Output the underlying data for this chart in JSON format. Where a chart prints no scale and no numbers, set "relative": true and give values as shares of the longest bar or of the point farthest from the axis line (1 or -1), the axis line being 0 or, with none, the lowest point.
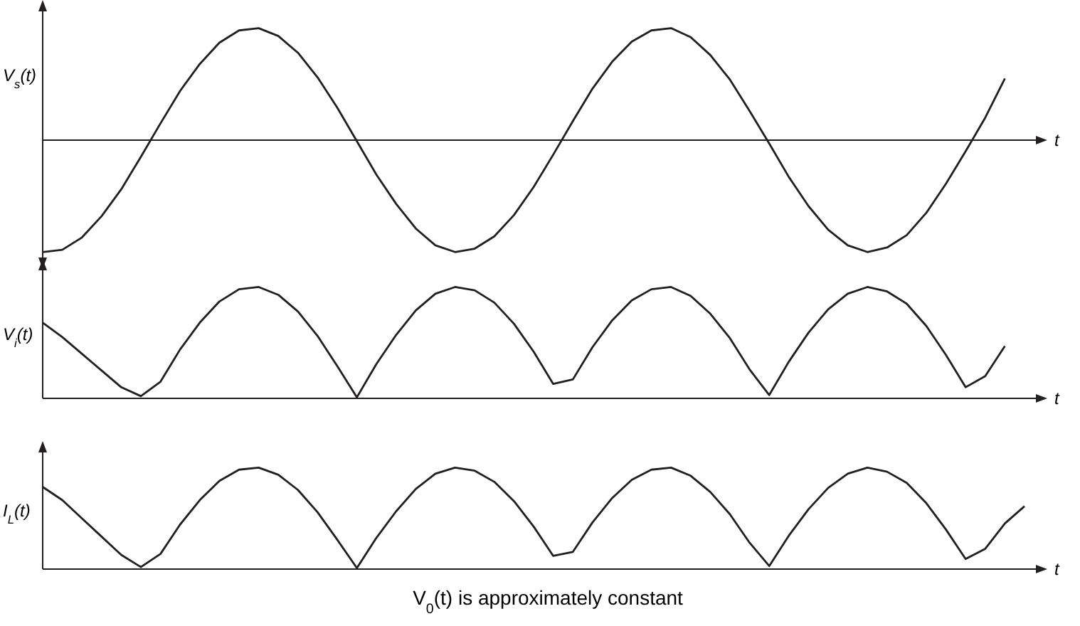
{
  "chart_data": [
    {
      "type": "line",
      "relative": true,
      "ylabel": "V$_{s}$(t)",
      "xlabel": "t",
      "categories": [
        null,
        null,
        null,
        null,
        null,
        null,
        null,
        null,
        null,
        null,
        null,
        null,
        null,
        null,
        null,
        null,
        null,
        null,
        null,
        null,
        null,
        null,
        null,
        null,
        null,
        null,
        null,
        null,
        null,
        null,
        null,
        null,
        null,
        null,
        null,
        null,
        null,
        null,
        null,
        null,
        null,
        null,
        null,
        null,
        null,
        null,
        null,
        null,
        null,
        null,
        null
      ],
      "series": [
        {
          "color": "#231f20",
          "values": [
            -1.0,
            -0.98,
            -0.87,
            -0.68,
            -0.44,
            -0.15,
            0.15,
            0.44,
            0.68,
            0.87,
            0.98,
            1.0,
            0.93,
            0.78,
            0.56,
            0.29,
            -0.01,
            -0.31,
            -0.57,
            -0.79,
            -0.94,
            -1.0,
            -0.97,
            -0.86,
            -0.67,
            -0.42,
            -0.13,
            0.17,
            0.46,
            0.7,
            0.88,
            0.98,
            1.0,
            0.92,
            0.76,
            0.54,
            0.26,
            -0.03,
            -0.33,
            -0.59,
            -0.8,
            -0.94,
            -1.0,
            -0.96,
            -0.85,
            -0.65,
            -0.39,
            -0.1,
            0.2,
            0.55,
            null
          ]
        }
      ]
    },
    {
      "type": "line",
      "relative": true,
      "ylabel": "V$_{i}$(t)",
      "xlabel": "t",
      "categories": [
        null,
        null,
        null,
        null,
        null,
        null,
        null,
        null,
        null,
        null,
        null,
        null,
        null,
        null,
        null,
        null,
        null,
        null,
        null,
        null,
        null,
        null,
        null,
        null,
        null,
        null,
        null,
        null,
        null,
        null,
        null,
        null,
        null,
        null,
        null,
        null,
        null,
        null,
        null,
        null,
        null,
        null,
        null,
        null,
        null,
        null,
        null,
        null,
        null,
        null,
        null
      ],
      "series": [
        {
          "color": "#231f20",
          "values": [
            0.68,
            0.55,
            0.4,
            0.25,
            0.1,
            0.02,
            0.15,
            0.44,
            0.68,
            0.87,
            0.98,
            1.0,
            0.93,
            0.78,
            0.56,
            0.29,
            0.01,
            0.31,
            0.57,
            0.79,
            0.94,
            1.0,
            0.97,
            0.86,
            0.67,
            0.42,
            0.13,
            0.17,
            0.46,
            0.7,
            0.88,
            0.98,
            1.0,
            0.92,
            0.76,
            0.54,
            0.26,
            0.03,
            0.33,
            0.59,
            0.8,
            0.94,
            1.0,
            0.96,
            0.85,
            0.65,
            0.39,
            0.1,
            0.2,
            0.47,
            null
          ]
        }
      ]
    },
    {
      "type": "line",
      "relative": true,
      "ylabel": "I$_{L}$(t)",
      "xlabel": "t",
      "annotations": [
        "V$_{0}$(t) is approximately constant"
      ],
      "categories": [
        null,
        null,
        null,
        null,
        null,
        null,
        null,
        null,
        null,
        null,
        null,
        null,
        null,
        null,
        null,
        null,
        null,
        null,
        null,
        null,
        null,
        null,
        null,
        null,
        null,
        null,
        null,
        null,
        null,
        null,
        null,
        null,
        null,
        null,
        null,
        null,
        null,
        null,
        null,
        null,
        null,
        null,
        null,
        null,
        null,
        null,
        null,
        null,
        null,
        null,
        null
      ],
      "series": [
        {
          "color": "#231f20",
          "values": [
            0.81,
            0.68,
            0.5,
            0.32,
            0.14,
            0.02,
            0.15,
            0.44,
            0.68,
            0.87,
            0.98,
            1.0,
            0.93,
            0.78,
            0.56,
            0.29,
            0.01,
            0.31,
            0.57,
            0.79,
            0.94,
            1.0,
            0.97,
            0.86,
            0.67,
            0.42,
            0.13,
            0.17,
            0.46,
            0.7,
            0.88,
            0.98,
            1.0,
            0.92,
            0.76,
            0.54,
            0.26,
            0.03,
            0.33,
            0.59,
            0.8,
            0.94,
            1.0,
            0.96,
            0.85,
            0.65,
            0.39,
            0.1,
            0.2,
            0.45,
            0.62
          ]
        }
      ]
    }
  ]
}
